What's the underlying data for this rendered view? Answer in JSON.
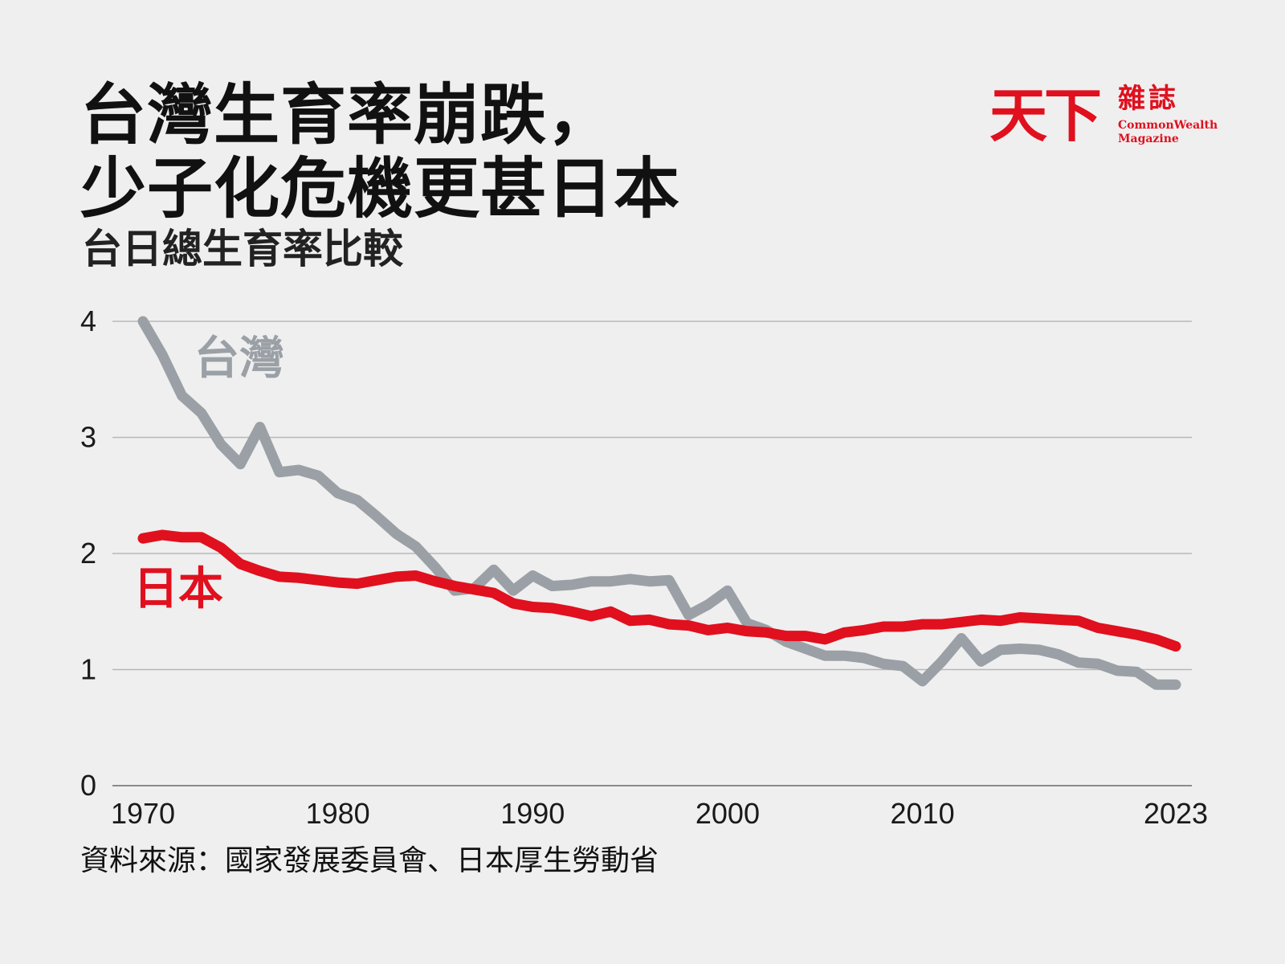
{
  "title": {
    "line1": "台灣生育率崩跌，",
    "line2": "少子化危機更甚日本"
  },
  "subtitle": "台日總生育率比較",
  "source": "資料來源：國家發展委員會、日本厚生勞動省",
  "logo": {
    "mark": "天下",
    "zh": "雜誌",
    "en_line1": "CommonWealth",
    "en_line2": "Magazine",
    "color": "#e0101e"
  },
  "chart_data": {
    "type": "line",
    "title": "台日總生育率比較",
    "xlabel": "",
    "ylabel": "",
    "ylim": [
      0,
      4
    ],
    "xlim": [
      1970,
      2023
    ],
    "yticks": [
      "0",
      "1",
      "2",
      "3",
      "4"
    ],
    "xticks": [
      "1970",
      "1980",
      "1990",
      "2000",
      "2010",
      "2023"
    ],
    "grid": true,
    "x": [
      1970,
      1971,
      1972,
      1973,
      1974,
      1975,
      1976,
      1977,
      1978,
      1979,
      1980,
      1981,
      1982,
      1983,
      1984,
      1985,
      1986,
      1987,
      1988,
      1989,
      1990,
      1991,
      1992,
      1993,
      1994,
      1995,
      1996,
      1997,
      1998,
      1999,
      2000,
      2001,
      2002,
      2003,
      2004,
      2005,
      2006,
      2007,
      2008,
      2009,
      2010,
      2011,
      2012,
      2013,
      2014,
      2015,
      2016,
      2017,
      2018,
      2019,
      2020,
      2021,
      2022,
      2023
    ],
    "series": [
      {
        "name": "台灣",
        "color": "#9aa0a6",
        "values": [
          4.0,
          3.71,
          3.36,
          3.21,
          2.94,
          2.77,
          3.09,
          2.7,
          2.72,
          2.67,
          2.52,
          2.46,
          2.32,
          2.17,
          2.06,
          1.88,
          1.68,
          1.7,
          1.86,
          1.68,
          1.81,
          1.72,
          1.73,
          1.76,
          1.76,
          1.78,
          1.76,
          1.77,
          1.47,
          1.56,
          1.68,
          1.4,
          1.34,
          1.24,
          1.18,
          1.12,
          1.12,
          1.1,
          1.05,
          1.03,
          0.9,
          1.07,
          1.27,
          1.07,
          1.17,
          1.18,
          1.17,
          1.13,
          1.06,
          1.05,
          0.99,
          0.98,
          0.87,
          0.87
        ]
      },
      {
        "name": "日本",
        "color": "#e0101e",
        "values": [
          2.13,
          2.16,
          2.14,
          2.14,
          2.05,
          1.91,
          1.85,
          1.8,
          1.79,
          1.77,
          1.75,
          1.74,
          1.77,
          1.8,
          1.81,
          1.76,
          1.72,
          1.69,
          1.66,
          1.57,
          1.54,
          1.53,
          1.5,
          1.46,
          1.5,
          1.42,
          1.43,
          1.39,
          1.38,
          1.34,
          1.36,
          1.33,
          1.32,
          1.29,
          1.29,
          1.26,
          1.32,
          1.34,
          1.37,
          1.37,
          1.39,
          1.39,
          1.41,
          1.43,
          1.42,
          1.45,
          1.44,
          1.43,
          1.42,
          1.36,
          1.33,
          1.3,
          1.26,
          1.2
        ]
      }
    ]
  }
}
